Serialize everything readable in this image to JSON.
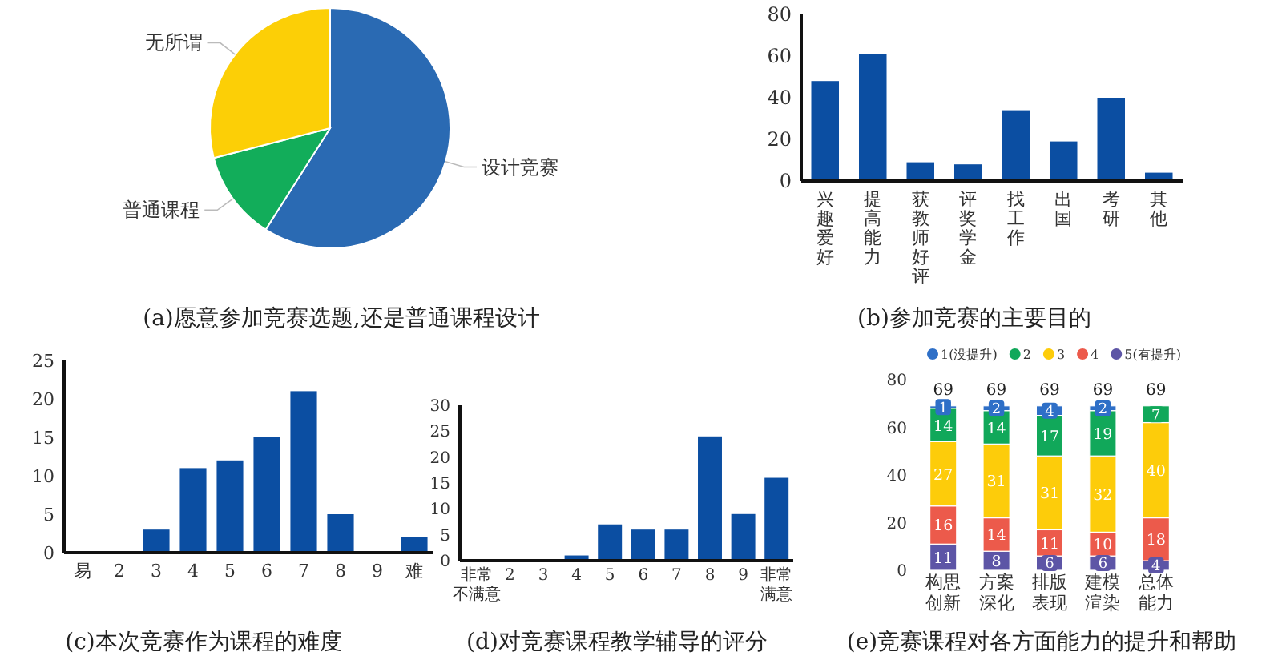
{
  "chart_data": [
    {
      "type": "pie",
      "title": "(a)愿意参加竞赛选题,还是普通课程设计",
      "categories": [
        "设计竞赛",
        "普通课程",
        "无所谓"
      ],
      "values": [
        59,
        12,
        29
      ],
      "colors": [
        "#2a6ab3",
        "#12ad5a",
        "#fccf06"
      ]
    },
    {
      "type": "bar",
      "title": "(b)参加竞赛的主要目的",
      "categories": [
        "兴趣爱好",
        "提高能力",
        "获教师好评",
        "评奖学金",
        "找工作",
        "出国",
        "考研",
        "其他"
      ],
      "values": [
        48,
        61,
        9,
        8,
        34,
        19,
        40,
        4
      ],
      "color": "#0b4ea2",
      "ylim": [
        0,
        80
      ],
      "yticks": [
        0,
        20,
        40,
        60,
        80
      ]
    },
    {
      "type": "bar",
      "title": "(c)本次竞赛作为课程的难度",
      "categories": [
        "易",
        "2",
        "3",
        "4",
        "5",
        "6",
        "7",
        "8",
        "9",
        "难"
      ],
      "values": [
        0,
        0,
        3,
        11,
        12,
        15,
        21,
        5,
        0,
        2
      ],
      "color": "#0b4ea2",
      "ylim": [
        0,
        25
      ],
      "yticks": [
        0,
        5,
        10,
        15,
        20,
        25
      ]
    },
    {
      "type": "bar",
      "title": "(d)对竞赛课程教学辅导的评分",
      "categories": [
        "非常不满意",
        "2",
        "3",
        "4",
        "5",
        "6",
        "7",
        "8",
        "9",
        "非常满意"
      ],
      "values": [
        0,
        0,
        0,
        1,
        7,
        6,
        6,
        24,
        9,
        16
      ],
      "color": "#0b4ea2",
      "ylim": [
        0,
        30
      ],
      "yticks": [
        0,
        5,
        10,
        15,
        20,
        25,
        30
      ]
    },
    {
      "type": "bar",
      "title": "(e)竞赛课程对各方面能力的提升和帮助",
      "categories": [
        "构思创新",
        "方案深化",
        "排版表现",
        "建模渲染",
        "总体能力"
      ],
      "stacked": true,
      "legend": "top",
      "ylim": [
        0,
        80
      ],
      "yticks": [
        0,
        20,
        40,
        60,
        80
      ],
      "totals": [
        "69",
        "69",
        "69",
        "69",
        "69"
      ],
      "series": [
        {
          "name": "5(有提升)",
          "color": "#5d55a6",
          "values": [
            11,
            8,
            6,
            6,
            4
          ],
          "value_labels": [
            "11",
            "8",
            "6",
            "6",
            "4"
          ]
        },
        {
          "name": "4",
          "color": "#ec5a4b",
          "values": [
            16,
            14,
            11,
            10,
            18
          ],
          "value_labels": [
            "16",
            "14",
            "11",
            "10",
            "18"
          ]
        },
        {
          "name": "3",
          "color": "#fdcc0a",
          "values": [
            27,
            31,
            31,
            32,
            40
          ],
          "value_labels": [
            "27",
            "31",
            "31",
            "32",
            "40"
          ]
        },
        {
          "name": "2",
          "color": "#11a85a",
          "values": [
            14,
            14,
            17,
            19,
            7
          ],
          "value_labels": [
            "14",
            "14",
            "17",
            "19",
            "7"
          ]
        },
        {
          "name": "1(没提升)",
          "color": "#2e6fc7",
          "values": [
            1,
            2,
            4,
            2,
            0
          ],
          "value_labels": [
            "1",
            "2",
            "4",
            "2",
            null
          ]
        }
      ]
    }
  ]
}
